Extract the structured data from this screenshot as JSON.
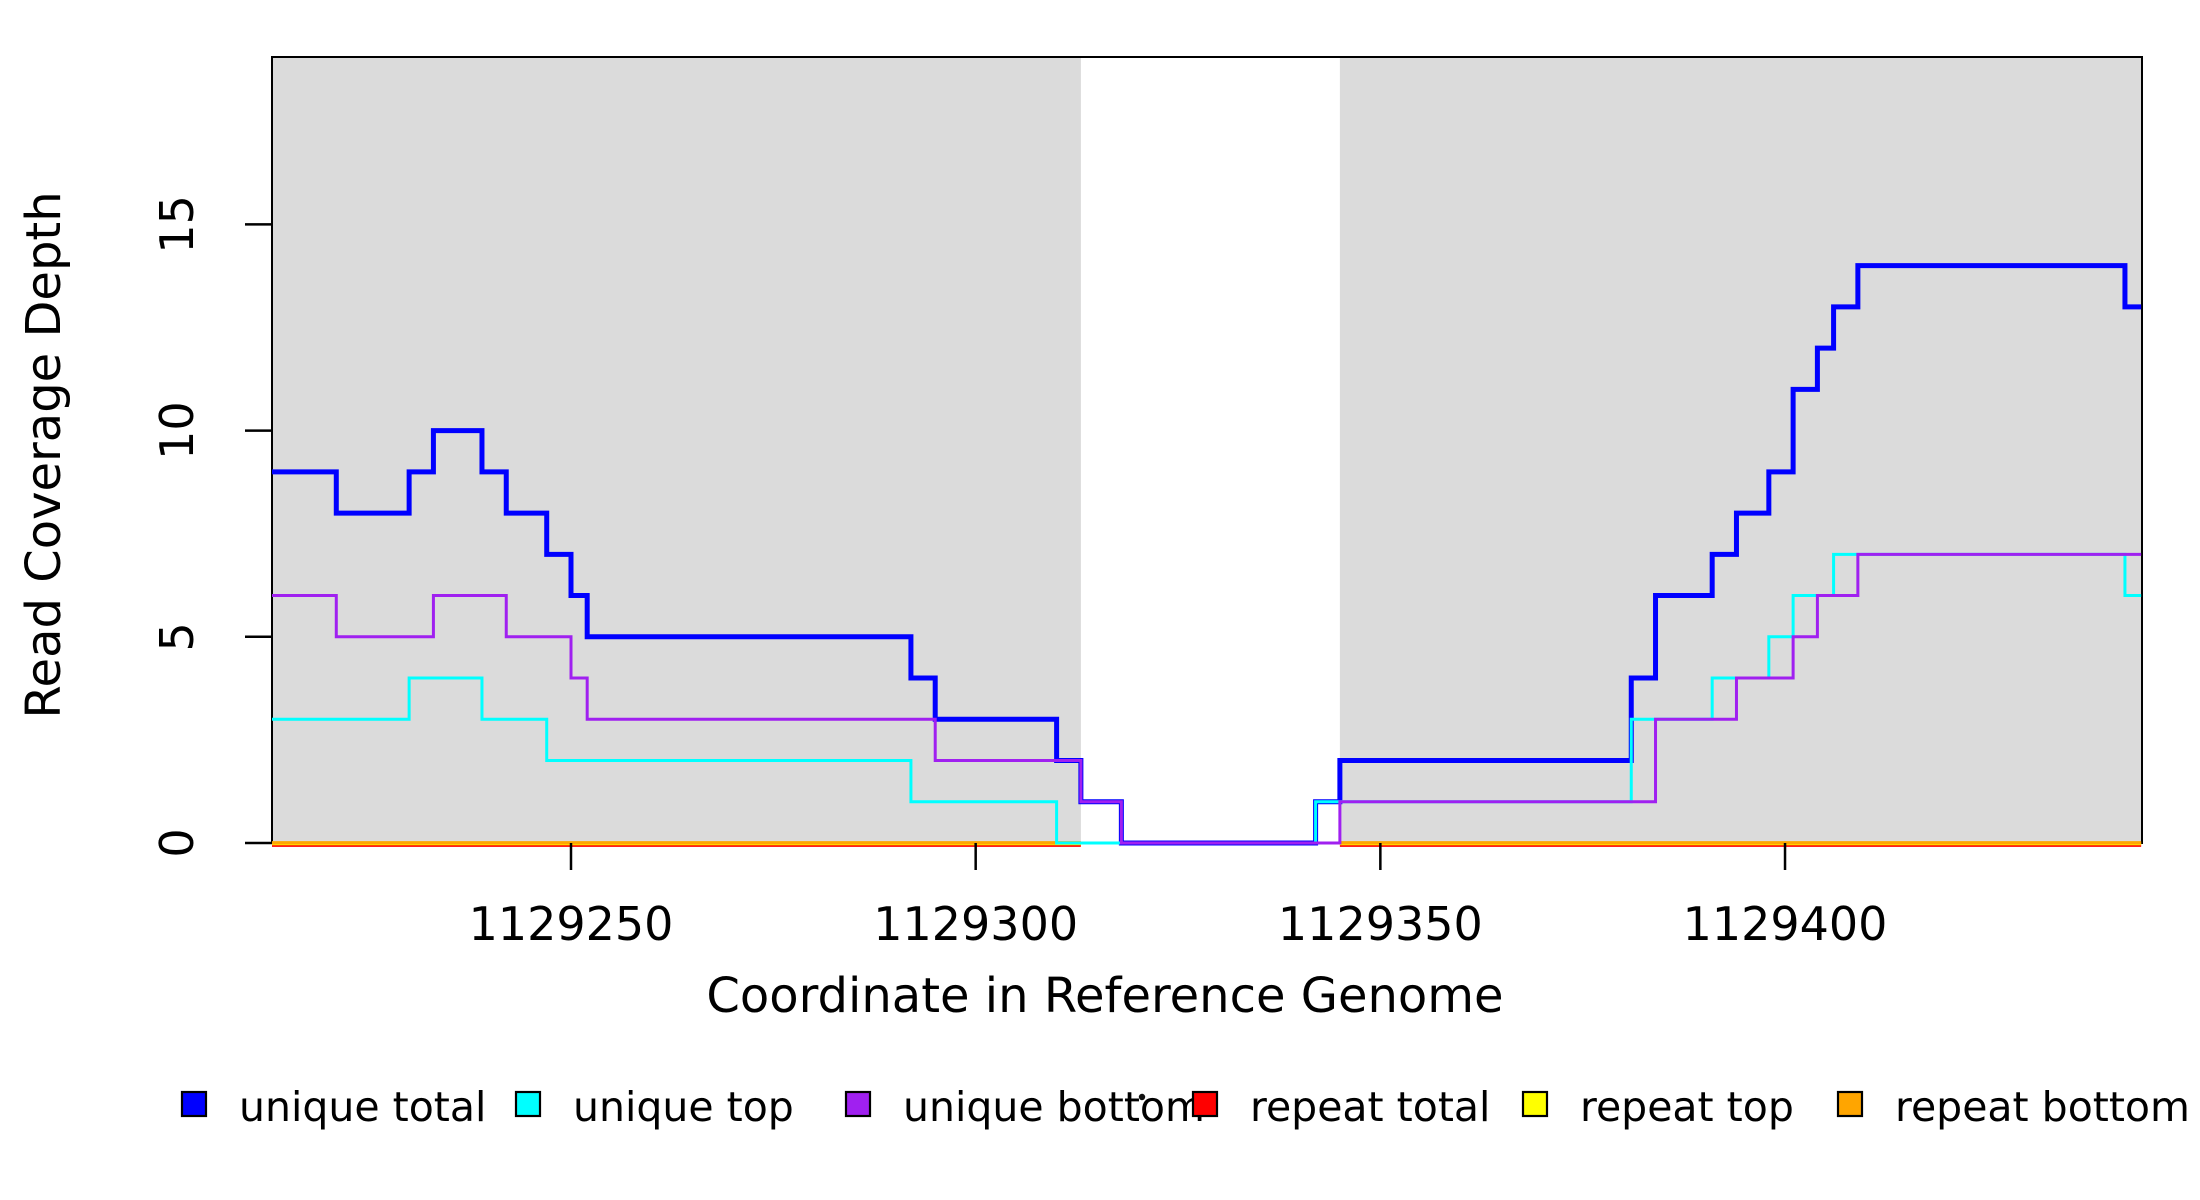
{
  "figure": {
    "xlabel": "Coordinate in Reference Genome",
    "ylabel": "Read Coverage Depth"
  },
  "chart_data": {
    "type": "line",
    "subtype": "step",
    "title": "",
    "xlabel": "Coordinate in Reference Genome",
    "ylabel": "Read Coverage Depth",
    "xlim": [
      1129213,
      1129444
    ],
    "ylim": [
      0,
      19
    ],
    "x_ticks": [
      "1129250",
      "1129300",
      "1129350",
      "1129400"
    ],
    "x_tick_values": [
      1129250,
      1129300,
      1129350,
      1129400
    ],
    "y_ticks": [
      "0",
      "5",
      "10",
      "15"
    ],
    "y_tick_values": [
      0,
      5,
      10,
      15
    ],
    "grid": false,
    "background_color": "#ffffff",
    "highlight_regions": [
      {
        "x0": 1129213,
        "x1": 1129313,
        "color": "#DBDBDB"
      },
      {
        "x0": 1129345,
        "x1": 1129444,
        "color": "#DBDBDB"
      }
    ],
    "series": [
      {
        "name": "unique total",
        "color": "#0000FF",
        "width": 5,
        "steps": [
          [
            1129213,
            9
          ],
          [
            1129221,
            8
          ],
          [
            1129230,
            9
          ],
          [
            1129233,
            10
          ],
          [
            1129239,
            9
          ],
          [
            1129242,
            8
          ],
          [
            1129247,
            7
          ],
          [
            1129250,
            6
          ],
          [
            1129252,
            5
          ],
          [
            1129292,
            4
          ],
          [
            1129295,
            3
          ],
          [
            1129310,
            2
          ],
          [
            1129313,
            1
          ],
          [
            1129318,
            0
          ],
          [
            1129342,
            1
          ],
          [
            1129345,
            2
          ],
          [
            1129381,
            4
          ],
          [
            1129384,
            6
          ],
          [
            1129391,
            7
          ],
          [
            1129394,
            8
          ],
          [
            1129398,
            9
          ],
          [
            1129401,
            11
          ],
          [
            1129404,
            12
          ],
          [
            1129406,
            13
          ],
          [
            1129409,
            14
          ],
          [
            1129442,
            13
          ]
        ],
        "x_end": 1129444
      },
      {
        "name": "unique top",
        "color": "#00FFFF",
        "width": 3,
        "steps": [
          [
            1129213,
            3
          ],
          [
            1129230,
            4
          ],
          [
            1129239,
            3
          ],
          [
            1129247,
            2
          ],
          [
            1129292,
            1
          ],
          [
            1129310,
            0
          ],
          [
            1129342,
            1
          ],
          [
            1129381,
            3
          ],
          [
            1129391,
            4
          ],
          [
            1129398,
            5
          ],
          [
            1129401,
            6
          ],
          [
            1129406,
            7
          ],
          [
            1129442,
            6
          ]
        ],
        "x_end": 1129444
      },
      {
        "name": "unique bottom",
        "color": "#A020F0",
        "width": 3,
        "steps": [
          [
            1129213,
            6
          ],
          [
            1129221,
            5
          ],
          [
            1129233,
            6
          ],
          [
            1129242,
            5
          ],
          [
            1129250,
            4
          ],
          [
            1129252,
            3
          ],
          [
            1129295,
            2
          ],
          [
            1129313,
            1
          ],
          [
            1129318,
            0
          ],
          [
            1129345,
            1
          ],
          [
            1129384,
            3
          ],
          [
            1129394,
            4
          ],
          [
            1129401,
            5
          ],
          [
            1129404,
            6
          ],
          [
            1129409,
            7
          ]
        ],
        "x_end": 1129444
      },
      {
        "name": "repeat total",
        "color": "#FF0000",
        "width": 3,
        "constant_value": 0,
        "drawn_in_regions": [
          [
            1129213,
            1129313
          ],
          [
            1129345,
            1129444
          ]
        ]
      },
      {
        "name": "repeat top",
        "color": "#FFFF00",
        "width": 3,
        "constant_value": 0,
        "drawn_in_regions": [
          [
            1129213,
            1129313
          ],
          [
            1129345,
            1129444
          ]
        ]
      },
      {
        "name": "repeat bottom",
        "color": "#FFA500",
        "width": 3,
        "constant_value": 0,
        "drawn_in_regions": [
          [
            1129213,
            1129313
          ],
          [
            1129345,
            1129444
          ]
        ]
      }
    ],
    "legend": {
      "position": "bottom",
      "entries": [
        {
          "label": "unique total",
          "color": "#0000FF"
        },
        {
          "label": "unique top",
          "color": "#00FFFF"
        },
        {
          "label": "unique bottom",
          "color": "#A020F0"
        },
        {
          "label": "repeat total",
          "color": "#FF0000"
        },
        {
          "label": "repeat top",
          "color": "#FFFF00"
        },
        {
          "label": "repeat bottom",
          "color": "#FFA500"
        }
      ],
      "stray_mark": "."
    }
  }
}
